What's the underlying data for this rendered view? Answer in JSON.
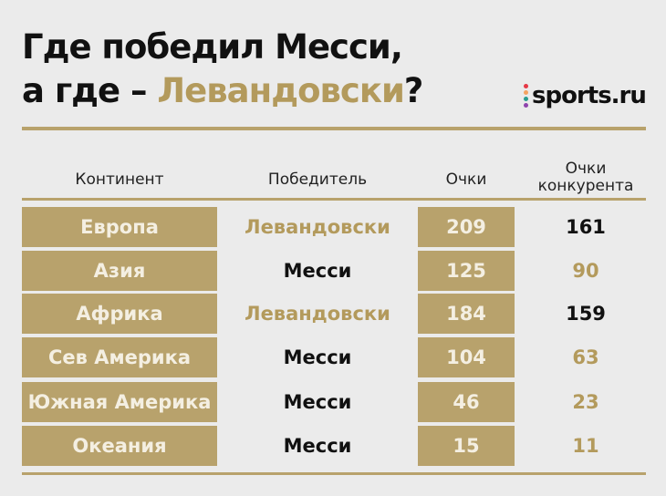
{
  "title": {
    "line1": "Где победил Месси,",
    "line2_prefix": "а где – ",
    "line2_highlight": "Левандовски",
    "line2_suffix": "?"
  },
  "logo": {
    "text": "sports.ru",
    "dot_colors": [
      "#e63946",
      "#f4a261",
      "#2a9d8f",
      "#8e44ad"
    ]
  },
  "colors": {
    "accent": "#b8a26c",
    "background": "#ebebeb",
    "text": "#111111"
  },
  "table": {
    "headers": {
      "continent": "Континент",
      "winner": "Победитель",
      "points": "Очки",
      "opponent_points_line1": "Очки",
      "opponent_points_line2": "конкурента"
    },
    "rows": [
      {
        "continent": "Европа",
        "winner": "Левандовски",
        "points": "209",
        "opponent_points": "161",
        "winner_is_lewandowski": true
      },
      {
        "continent": "Азия",
        "winner": "Месси",
        "points": "125",
        "opponent_points": "90",
        "winner_is_lewandowski": false
      },
      {
        "continent": "Африка",
        "winner": "Левандовски",
        "points": "184",
        "opponent_points": "159",
        "winner_is_lewandowski": true
      },
      {
        "continent": "Сев Америка",
        "winner": "Месси",
        "points": "104",
        "opponent_points": "63",
        "winner_is_lewandowski": false
      },
      {
        "continent": "Южная Америка",
        "winner": "Месси",
        "points": "46",
        "opponent_points": "23",
        "winner_is_lewandowski": false
      },
      {
        "continent": "Океания",
        "winner": "Месси",
        "points": "15",
        "opponent_points": "11",
        "winner_is_lewandowski": false
      }
    ]
  }
}
